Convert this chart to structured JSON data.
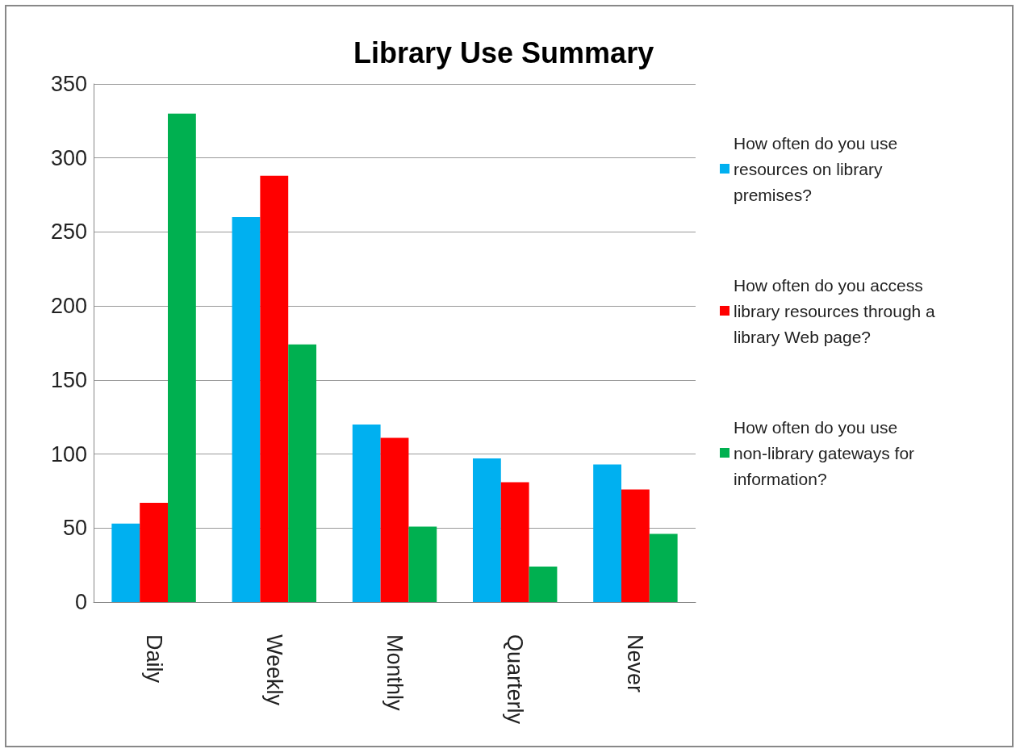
{
  "chart_data": {
    "type": "bar",
    "title": "Library Use Summary",
    "categories": [
      "Daily",
      "Weekly",
      "Monthly",
      "Quarterly",
      "Never"
    ],
    "series": [
      {
        "name": "How often do you use resources on library premises?",
        "color": "#00b0f0",
        "values": [
          53,
          260,
          120,
          97,
          93
        ]
      },
      {
        "name": "How often do you access library resources through a library Web page?",
        "color": "#ff0000",
        "values": [
          67,
          288,
          111,
          81,
          76
        ]
      },
      {
        "name": "How often do you use non-library gateways for information?",
        "color": "#00b050",
        "values": [
          330,
          174,
          51,
          24,
          46
        ]
      }
    ],
    "ylim": [
      0,
      350
    ],
    "yticks": [
      0,
      50,
      100,
      150,
      200,
      250,
      300,
      350
    ],
    "grid": "y",
    "legend": "right"
  }
}
